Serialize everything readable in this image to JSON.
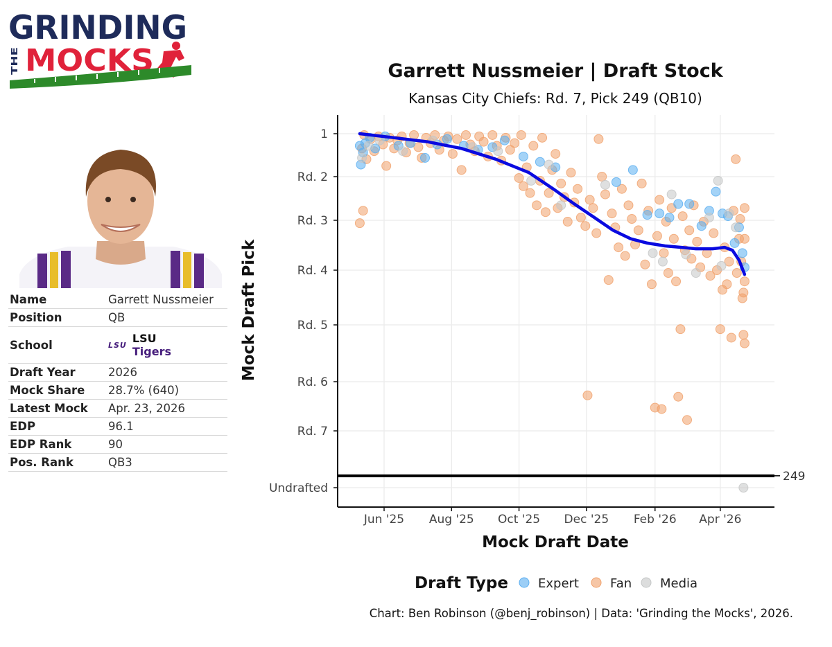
{
  "logo": {
    "line1": "GRINDING",
    "line2": "THE",
    "line3": "MOCKS"
  },
  "player": {
    "rows": [
      {
        "key": "Name",
        "value": "Garrett Nussmeier"
      },
      {
        "key": "Position",
        "value": "QB"
      },
      {
        "key": "School",
        "value": "",
        "school_mark": "LSU",
        "school_line1": "LSU",
        "school_line2": "Tigers"
      },
      {
        "key": "Draft Year",
        "value": "2026"
      },
      {
        "key": "Mock Share",
        "value": "28.7% (640)"
      },
      {
        "key": "Latest Mock",
        "value": "Apr. 23, 2026"
      },
      {
        "key": "EDP",
        "value": "96.1"
      },
      {
        "key": "EDP Rank",
        "value": "90"
      },
      {
        "key": "Pos. Rank",
        "value": "QB3"
      }
    ]
  },
  "colors": {
    "expert": "#5aaef0",
    "fan": "#f0a06a",
    "media": "#c4c6c6",
    "trend": "#0a0ae0",
    "lsu_purple": "#461d7c",
    "logo_navy": "#1e2b5a",
    "logo_red": "#e0223a",
    "logo_green": "#2d8a2a"
  },
  "caption": "Chart: Ben Robinson (@benj_robinson) | Data: 'Grinding the Mocks', 2026.",
  "chart_data": {
    "type": "scatter",
    "title": "Garrett Nussmeier | Draft Stock",
    "subtitle": "Kansas City Chiefs: Rd. 7, Pick 249 (QB10)",
    "xlabel": "Mock Draft Date",
    "ylabel": "Mock Draft Pick",
    "x_ticks": [
      "Jun '25",
      "Aug '25",
      "Oct '25",
      "Dec '25",
      "Feb '26",
      "Apr '26"
    ],
    "x_tick_dates": [
      "2025-06-01",
      "2025-08-01",
      "2025-10-01",
      "2025-12-01",
      "2026-02-01",
      "2026-04-01"
    ],
    "xlim": [
      "2025-04-20",
      "2026-05-20"
    ],
    "y_ticks": [
      {
        "label": "1",
        "pick": 1
      },
      {
        "label": "Rd. 2",
        "pick": 33
      },
      {
        "label": "Rd. 3",
        "pick": 65
      },
      {
        "label": "Rd. 4",
        "pick": 100
      },
      {
        "label": "Rd. 5",
        "pick": 139
      },
      {
        "label": "Rd. 6",
        "pick": 179
      },
      {
        "label": "Rd. 7",
        "pick": 215
      },
      {
        "label": "Undrafted",
        "pick": 258
      }
    ],
    "ylim_reversed": [
      -8,
      278
    ],
    "reference_line": {
      "pick": 249,
      "label": "249"
    },
    "legend": {
      "title": "Draft Type",
      "position": "bottom",
      "entries": [
        {
          "name": "Expert",
          "color_key": "expert"
        },
        {
          "name": "Fan",
          "color_key": "fan"
        },
        {
          "name": "Media",
          "color_key": "media"
        }
      ]
    },
    "trend": [
      [
        "2025-05-10",
        1
      ],
      [
        "2025-06-10",
        4
      ],
      [
        "2025-07-10",
        7
      ],
      [
        "2025-08-10",
        12
      ],
      [
        "2025-09-10",
        20
      ],
      [
        "2025-10-10",
        30
      ],
      [
        "2025-11-01",
        42
      ],
      [
        "2025-11-20",
        53
      ],
      [
        "2025-12-10",
        64
      ],
      [
        "2025-12-25",
        72
      ],
      [
        "2026-01-10",
        78
      ],
      [
        "2026-01-25",
        81
      ],
      [
        "2026-02-10",
        83
      ],
      [
        "2026-02-25",
        84
      ],
      [
        "2026-03-10",
        85
      ],
      [
        "2026-03-25",
        85
      ],
      [
        "2026-04-05",
        84
      ],
      [
        "2026-04-12",
        86
      ],
      [
        "2026-04-18",
        93
      ],
      [
        "2026-04-23",
        103
      ]
    ],
    "points": {
      "expert": [
        [
          "2025-05-10",
          10
        ],
        [
          "2025-05-11",
          24
        ],
        [
          "2025-05-13",
          15
        ],
        [
          "2025-05-15",
          8
        ],
        [
          "2025-05-19",
          4
        ],
        [
          "2025-05-24",
          12
        ],
        [
          "2025-06-02",
          3
        ],
        [
          "2025-06-14",
          10
        ],
        [
          "2025-06-25",
          8
        ],
        [
          "2025-07-08",
          19
        ],
        [
          "2025-07-19",
          9
        ],
        [
          "2025-07-28",
          5
        ],
        [
          "2025-08-12",
          10
        ],
        [
          "2025-08-25",
          13
        ],
        [
          "2025-09-07",
          11
        ],
        [
          "2025-09-18",
          6
        ],
        [
          "2025-10-05",
          18
        ],
        [
          "2025-10-20",
          22
        ],
        [
          "2025-11-03",
          26
        ],
        [
          "2025-12-28",
          37
        ],
        [
          "2026-01-12",
          28
        ],
        [
          "2026-01-25",
          61
        ],
        [
          "2026-02-05",
          60
        ],
        [
          "2026-02-14",
          63
        ],
        [
          "2026-02-22",
          53
        ],
        [
          "2026-03-04",
          53
        ],
        [
          "2026-03-15",
          69
        ],
        [
          "2026-03-22",
          58
        ],
        [
          "2026-03-28",
          44
        ],
        [
          "2026-04-03",
          60
        ],
        [
          "2026-04-08",
          62
        ],
        [
          "2026-04-14",
          81
        ],
        [
          "2026-04-18",
          70
        ],
        [
          "2026-04-21",
          88
        ],
        [
          "2026-04-23",
          98
        ]
      ],
      "media": [
        [
          "2025-05-12",
          19
        ],
        [
          "2025-05-18",
          10
        ],
        [
          "2025-05-28",
          6
        ],
        [
          "2025-06-18",
          14
        ],
        [
          "2025-07-15",
          6
        ],
        [
          "2025-08-20",
          11
        ],
        [
          "2025-09-12",
          14
        ],
        [
          "2025-10-12",
          36
        ],
        [
          "2025-10-28",
          24
        ],
        [
          "2025-11-08",
          54
        ],
        [
          "2025-12-18",
          39
        ],
        [
          "2026-01-30",
          88
        ],
        [
          "2026-02-08",
          94
        ],
        [
          "2026-02-16",
          46
        ],
        [
          "2026-03-01",
          89
        ],
        [
          "2026-03-10",
          102
        ],
        [
          "2026-03-22",
          63
        ],
        [
          "2026-03-30",
          36
        ],
        [
          "2026-04-02",
          97
        ],
        [
          "2026-04-09",
          60
        ],
        [
          "2026-04-15",
          70
        ],
        [
          "2026-04-22",
          258
        ]
      ],
      "fan": [
        [
          "2025-05-10",
          67
        ],
        [
          "2025-05-13",
          58
        ],
        [
          "2025-05-12",
          12
        ],
        [
          "2025-05-14",
          2
        ],
        [
          "2025-05-16",
          20
        ],
        [
          "2025-05-20",
          5
        ],
        [
          "2025-05-23",
          14
        ],
        [
          "2025-05-27",
          3
        ],
        [
          "2025-05-31",
          9
        ],
        [
          "2025-06-03",
          25
        ],
        [
          "2025-06-06",
          4
        ],
        [
          "2025-06-10",
          12
        ],
        [
          "2025-06-13",
          6
        ],
        [
          "2025-06-17",
          3
        ],
        [
          "2025-06-21",
          15
        ],
        [
          "2025-06-24",
          8
        ],
        [
          "2025-06-28",
          2
        ],
        [
          "2025-07-02",
          11
        ],
        [
          "2025-07-05",
          19
        ],
        [
          "2025-07-09",
          4
        ],
        [
          "2025-07-13",
          8
        ],
        [
          "2025-07-17",
          2
        ],
        [
          "2025-07-21",
          13
        ],
        [
          "2025-07-25",
          6
        ],
        [
          "2025-07-29",
          3
        ],
        [
          "2025-08-02",
          16
        ],
        [
          "2025-08-06",
          5
        ],
        [
          "2025-08-10",
          28
        ],
        [
          "2025-08-14",
          2
        ],
        [
          "2025-08-18",
          9
        ],
        [
          "2025-08-22",
          14
        ],
        [
          "2025-08-26",
          3
        ],
        [
          "2025-08-30",
          7
        ],
        [
          "2025-09-03",
          18
        ],
        [
          "2025-09-07",
          2
        ],
        [
          "2025-09-11",
          10
        ],
        [
          "2025-09-15",
          21
        ],
        [
          "2025-09-19",
          4
        ],
        [
          "2025-09-23",
          13
        ],
        [
          "2025-09-27",
          8
        ],
        [
          "2025-10-01",
          34
        ],
        [
          "2025-10-03",
          2
        ],
        [
          "2025-10-05",
          40
        ],
        [
          "2025-10-08",
          26
        ],
        [
          "2025-10-11",
          45
        ],
        [
          "2025-10-14",
          10
        ],
        [
          "2025-10-17",
          54
        ],
        [
          "2025-10-20",
          36
        ],
        [
          "2025-10-22",
          4
        ],
        [
          "2025-10-25",
          59
        ],
        [
          "2025-10-28",
          45
        ],
        [
          "2025-10-31",
          28
        ],
        [
          "2025-11-03",
          16
        ],
        [
          "2025-11-05",
          56
        ],
        [
          "2025-11-08",
          38
        ],
        [
          "2025-11-11",
          48
        ],
        [
          "2025-11-14",
          66
        ],
        [
          "2025-11-17",
          30
        ],
        [
          "2025-11-20",
          52
        ],
        [
          "2025-11-23",
          42
        ],
        [
          "2025-11-26",
          63
        ],
        [
          "2025-11-30",
          69
        ],
        [
          "2025-12-02",
          189
        ],
        [
          "2025-12-04",
          50
        ],
        [
          "2025-12-07",
          56
        ],
        [
          "2025-12-10",
          74
        ],
        [
          "2025-12-12",
          5
        ],
        [
          "2025-12-15",
          33
        ],
        [
          "2025-12-18",
          46
        ],
        [
          "2025-12-21",
          107
        ],
        [
          "2025-12-24",
          60
        ],
        [
          "2025-12-27",
          70
        ],
        [
          "2025-12-30",
          84
        ],
        [
          "2026-01-02",
          42
        ],
        [
          "2026-01-05",
          90
        ],
        [
          "2026-01-08",
          54
        ],
        [
          "2026-01-11",
          64
        ],
        [
          "2026-01-14",
          82
        ],
        [
          "2026-01-17",
          72
        ],
        [
          "2026-01-20",
          38
        ],
        [
          "2026-01-23",
          96
        ],
        [
          "2026-01-26",
          58
        ],
        [
          "2026-01-29",
          110
        ],
        [
          "2026-02-01",
          198
        ],
        [
          "2026-02-03",
          76
        ],
        [
          "2026-02-05",
          50
        ],
        [
          "2026-02-07",
          199
        ],
        [
          "2026-02-09",
          88
        ],
        [
          "2026-02-11",
          66
        ],
        [
          "2026-02-13",
          102
        ],
        [
          "2026-02-16",
          56
        ],
        [
          "2026-02-18",
          78
        ],
        [
          "2026-02-20",
          108
        ],
        [
          "2026-02-22",
          190
        ],
        [
          "2026-02-24",
          142
        ],
        [
          "2026-02-26",
          62
        ],
        [
          "2026-02-28",
          86
        ],
        [
          "2026-03-02",
          207
        ],
        [
          "2026-03-04",
          72
        ],
        [
          "2026-03-06",
          92
        ],
        [
          "2026-03-08",
          54
        ],
        [
          "2026-03-11",
          80
        ],
        [
          "2026-03-14",
          98
        ],
        [
          "2026-03-17",
          66
        ],
        [
          "2026-03-20",
          88
        ],
        [
          "2026-03-23",
          104
        ],
        [
          "2026-03-26",
          74
        ],
        [
          "2026-03-29",
          100
        ],
        [
          "2026-04-01",
          142
        ],
        [
          "2026-04-03",
          114
        ],
        [
          "2026-04-05",
          84
        ],
        [
          "2026-04-07",
          110
        ],
        [
          "2026-04-09",
          94
        ],
        [
          "2026-04-11",
          148
        ],
        [
          "2026-04-13",
          58
        ],
        [
          "2026-04-15",
          20
        ],
        [
          "2026-04-16",
          102
        ],
        [
          "2026-04-18",
          78
        ],
        [
          "2026-04-19",
          64
        ],
        [
          "2026-04-20",
          94
        ],
        [
          "2026-04-21",
          120
        ],
        [
          "2026-04-22",
          146
        ],
        [
          "2026-04-22",
          116
        ],
        [
          "2026-04-23",
          152
        ],
        [
          "2026-04-23",
          108
        ],
        [
          "2026-04-23",
          78
        ],
        [
          "2026-04-23",
          56
        ]
      ]
    }
  }
}
